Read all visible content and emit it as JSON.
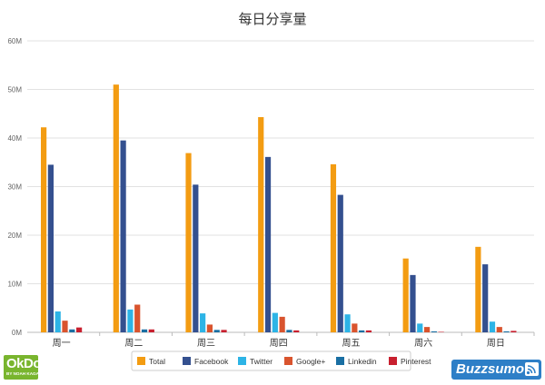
{
  "chart_data": {
    "type": "bar",
    "title": "每日分享量",
    "categories": [
      "周一",
      "周二",
      "周三",
      "周四",
      "周五",
      "周六",
      "周日"
    ],
    "ylim": [
      0,
      60
    ],
    "yticks": [
      {
        "value": 0,
        "label": "0M"
      },
      {
        "value": 10,
        "label": "10M"
      },
      {
        "value": 20,
        "label": "20M"
      },
      {
        "value": 30,
        "label": "30M"
      },
      {
        "value": 40,
        "label": "40M"
      },
      {
        "value": 50,
        "label": "50M"
      },
      {
        "value": 60,
        "label": "60M"
      }
    ],
    "grid": true,
    "legend_position": "bottom",
    "series": [
      {
        "name": "Total",
        "color": "#f39c12",
        "values": [
          42.2,
          51.0,
          36.9,
          44.3,
          34.6,
          15.2,
          17.6
        ]
      },
      {
        "name": "Facebook",
        "color": "#34508f",
        "values": [
          34.5,
          39.5,
          30.4,
          36.1,
          28.3,
          11.8,
          14.0
        ]
      },
      {
        "name": "Twitter",
        "color": "#2db4e6",
        "values": [
          4.3,
          4.7,
          3.9,
          4.0,
          3.7,
          1.8,
          2.2
        ]
      },
      {
        "name": "Google+",
        "color": "#d9542e",
        "values": [
          2.4,
          5.7,
          1.6,
          3.2,
          1.8,
          1.1,
          1.1
        ]
      },
      {
        "name": "Linkedin",
        "color": "#1a6fa3",
        "values": [
          0.6,
          0.6,
          0.5,
          0.5,
          0.4,
          0.2,
          0.2
        ]
      },
      {
        "name": "Pinterest",
        "color": "#c8202f",
        "values": [
          1.0,
          0.6,
          0.5,
          0.4,
          0.4,
          0.1,
          0.3
        ]
      }
    ]
  },
  "logos": {
    "okdork": {
      "text": "OkDork",
      "subtext": "BY NOAH KAGAN",
      "color": "#79b52e"
    },
    "buzzsumo": {
      "text": "Buzzsumo",
      "color": "#2e7fc7"
    }
  }
}
